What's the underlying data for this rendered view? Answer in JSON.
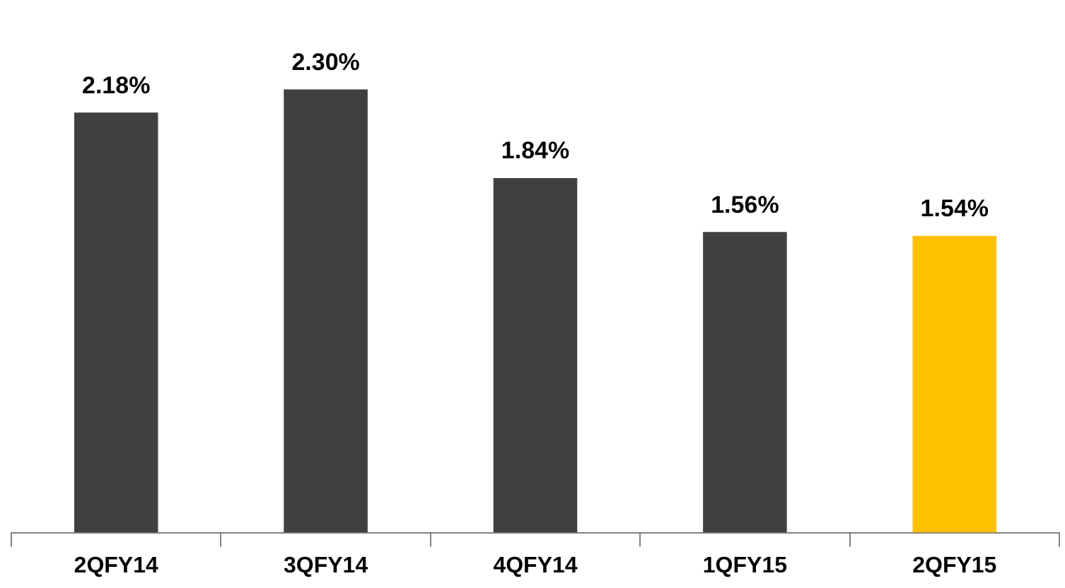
{
  "chart_data": {
    "type": "bar",
    "categories": [
      "2QFY14",
      "3QFY14",
      "4QFY14",
      "1QFY15",
      "2QFY15"
    ],
    "values": [
      2.18,
      2.3,
      1.84,
      1.56,
      1.54
    ],
    "colors": [
      "#404040",
      "#404040",
      "#404040",
      "#404040",
      "#ffc000"
    ],
    "value_labels": [
      "2.18%",
      "2.30%",
      "1.84%",
      "1.56%",
      "1.54%"
    ],
    "grid": false,
    "legend": false
  }
}
